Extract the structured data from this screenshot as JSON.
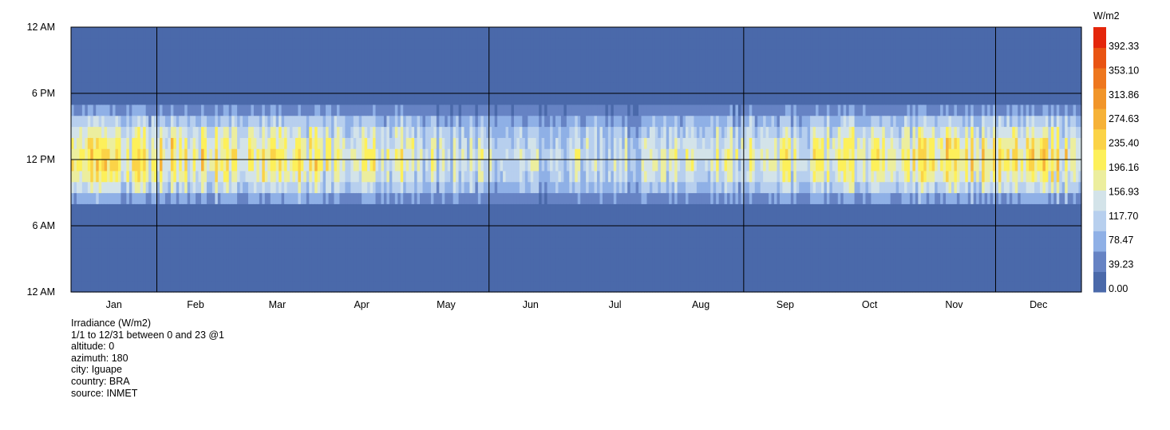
{
  "chart_data": {
    "type": "heatmap",
    "unit_label": "W/m2",
    "x_ticks": [
      "Jan",
      "Feb",
      "Mar",
      "Apr",
      "May",
      "Jun",
      "Jul",
      "Aug",
      "Sep",
      "Oct",
      "Nov",
      "Dec"
    ],
    "y_ticks": [
      "12 AM",
      "6 PM",
      "12 PM",
      "6 AM",
      "12 AM"
    ],
    "x_range": [
      "1/1",
      "12/31"
    ],
    "y_range_hours": [
      0,
      23
    ],
    "color_scale": {
      "min": 0.0,
      "max": 431.56,
      "tick_labels": [
        "392.33",
        "353.10",
        "313.86",
        "274.63",
        "235.40",
        "196.16",
        "156.93",
        "117.70",
        "78.47",
        "39.23",
        "0.00"
      ],
      "colors": [
        "#4a69aa",
        "#6683c4",
        "#8fb0e6",
        "#b7cfee",
        "#d3e3e9",
        "#ecee9e",
        "#fdf05a",
        "#fbd347",
        "#f6b238",
        "#f1952a",
        "#ee771e",
        "#e95413",
        "#e4260b"
      ]
    },
    "hourly_profile_typical_wm2": [
      0,
      0,
      0,
      0,
      0,
      0,
      0,
      20,
      90,
      160,
      210,
      235,
      240,
      220,
      185,
      135,
      75,
      25,
      0,
      0,
      0,
      0,
      0,
      0
    ],
    "monthly_peak_factor": [
      1.0,
      1.0,
      0.98,
      0.84,
      0.72,
      0.66,
      0.68,
      0.78,
      0.88,
      0.95,
      1.0,
      1.0
    ]
  },
  "info": {
    "line1": "Irradiance (W/m2)",
    "line2": "1/1 to 12/31 between 0 and 23 @1",
    "line3": "altitude: 0",
    "line4": "azimuth: 180",
    "line5": "city: Iguape",
    "line6": "country: BRA",
    "line7": "source: INMET"
  }
}
